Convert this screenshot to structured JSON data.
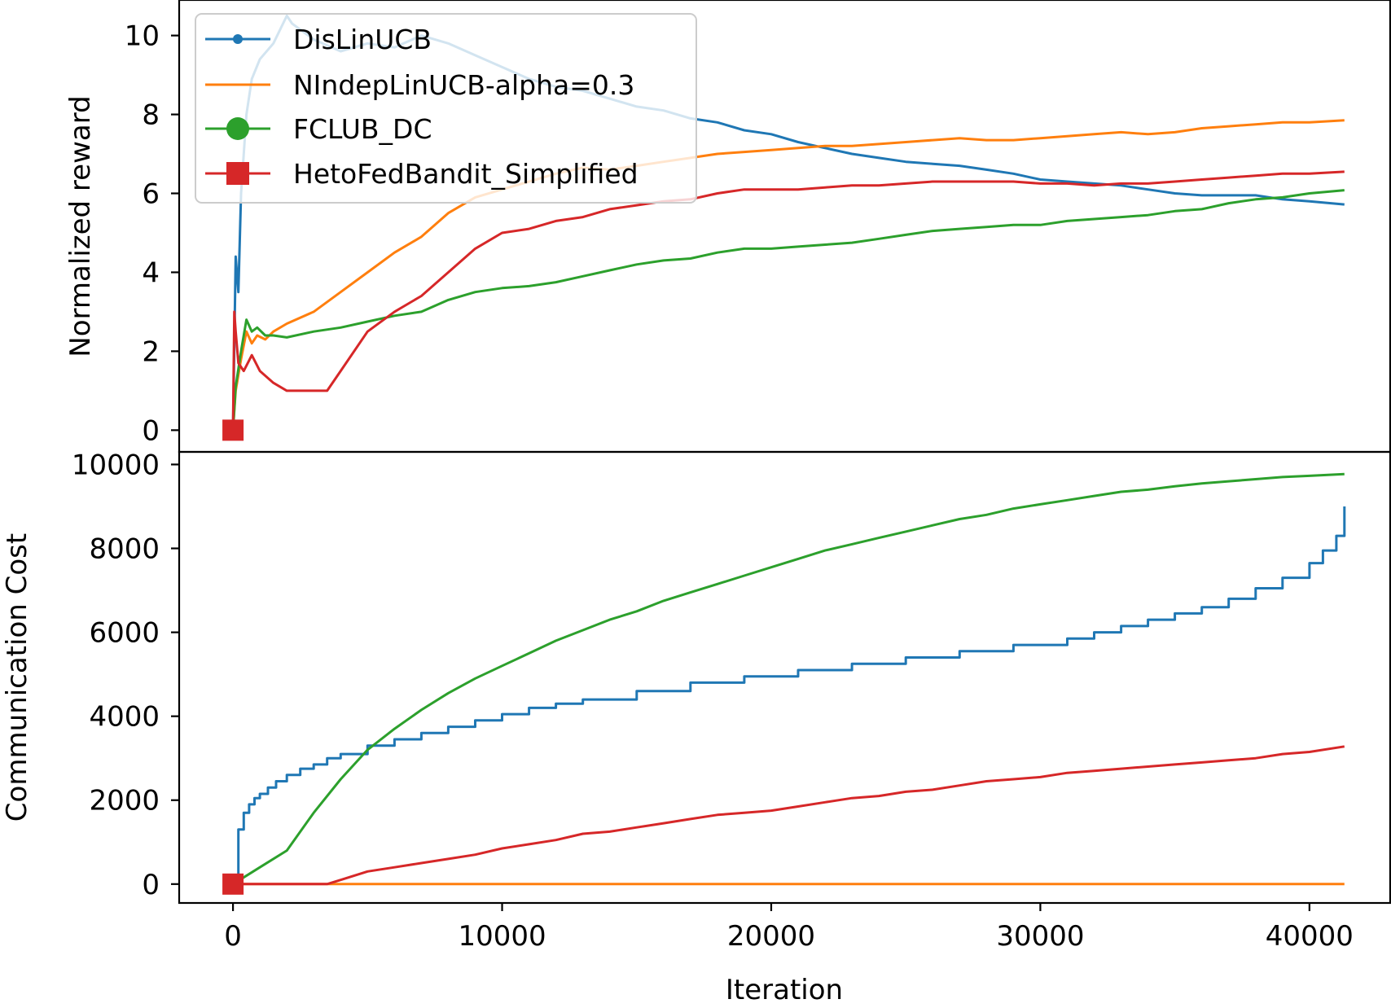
{
  "chart_data": [
    {
      "type": "line",
      "ylabel": "Normalized reward",
      "xlabel": "",
      "xlim": [
        -2000,
        43000
      ],
      "ylim": [
        -0.55,
        10.9
      ],
      "yticks": [
        0,
        2,
        4,
        6,
        8,
        10
      ],
      "xticks": [],
      "grid": false,
      "legend": {
        "position": "upper-left",
        "entries": [
          {
            "label": "DisLinUCB",
            "color": "#1f77b4",
            "marker": "dot"
          },
          {
            "label": "NIndepLinUCB-alpha=0.3",
            "color": "#ff7f0e",
            "marker": "none"
          },
          {
            "label": "FCLUB_DC",
            "color": "#2ca02c",
            "marker": "circle"
          },
          {
            "label": "HetoFedBandit_Simplified",
            "color": "#d62728",
            "marker": "square"
          }
        ]
      },
      "series": [
        {
          "name": "DisLinUCB",
          "color": "#1f77b4",
          "x": [
            0,
            100,
            200,
            300,
            500,
            700,
            1000,
            1500,
            2000,
            2200,
            3000,
            4000,
            5000,
            6000,
            7000,
            8000,
            9000,
            10000,
            11000,
            12000,
            13000,
            14000,
            15000,
            16000,
            17000,
            18000,
            19000,
            20000,
            21000,
            22000,
            23000,
            24000,
            25000,
            26000,
            27000,
            28000,
            29000,
            30000,
            31000,
            32000,
            33000,
            34000,
            35000,
            36000,
            37000,
            38000,
            39000,
            40000,
            41300
          ],
          "y": [
            0,
            4.4,
            3.5,
            6.0,
            8.0,
            8.9,
            9.4,
            9.8,
            10.5,
            10.3,
            9.9,
            9.6,
            9.8,
            9.7,
            10.0,
            9.8,
            9.5,
            9.2,
            8.9,
            8.7,
            8.6,
            8.4,
            8.2,
            8.1,
            7.9,
            7.8,
            7.6,
            7.5,
            7.3,
            7.15,
            7.0,
            6.9,
            6.8,
            6.75,
            6.7,
            6.6,
            6.5,
            6.35,
            6.3,
            6.25,
            6.2,
            6.1,
            6.0,
            5.95,
            5.95,
            5.95,
            5.85,
            5.8,
            5.72
          ]
        },
        {
          "name": "NIndepLinUCB-alpha=0.3",
          "color": "#ff7f0e",
          "x": [
            0,
            100,
            300,
            500,
            700,
            900,
            1200,
            1500,
            2000,
            3000,
            4000,
            5000,
            6000,
            7000,
            8000,
            9000,
            10000,
            11000,
            12000,
            13000,
            14000,
            15000,
            16000,
            17000,
            18000,
            19000,
            20000,
            21000,
            22000,
            23000,
            24000,
            25000,
            26000,
            27000,
            28000,
            29000,
            30000,
            31000,
            32000,
            33000,
            34000,
            35000,
            36000,
            37000,
            38000,
            39000,
            40000,
            41300
          ],
          "y": [
            0,
            1.0,
            1.8,
            2.5,
            2.2,
            2.4,
            2.3,
            2.5,
            2.7,
            3.0,
            3.5,
            4.0,
            4.5,
            4.9,
            5.5,
            5.9,
            6.1,
            6.3,
            6.5,
            6.65,
            6.6,
            6.7,
            6.8,
            6.9,
            7.0,
            7.05,
            7.1,
            7.15,
            7.2,
            7.2,
            7.25,
            7.3,
            7.35,
            7.4,
            7.35,
            7.35,
            7.4,
            7.45,
            7.5,
            7.55,
            7.5,
            7.55,
            7.65,
            7.7,
            7.75,
            7.8,
            7.8,
            7.85
          ]
        },
        {
          "name": "FCLUB_DC",
          "color": "#2ca02c",
          "x": [
            0,
            100,
            300,
            500,
            700,
            900,
            1200,
            1500,
            2000,
            3000,
            4000,
            5000,
            6000,
            7000,
            8000,
            9000,
            10000,
            11000,
            12000,
            13000,
            14000,
            15000,
            16000,
            17000,
            18000,
            19000,
            20000,
            21000,
            22000,
            23000,
            24000,
            25000,
            26000,
            27000,
            28000,
            29000,
            30000,
            31000,
            32000,
            33000,
            34000,
            35000,
            36000,
            37000,
            38000,
            39000,
            40000,
            41300
          ],
          "y": [
            0,
            1.1,
            2.0,
            2.8,
            2.5,
            2.6,
            2.4,
            2.4,
            2.35,
            2.5,
            2.6,
            2.75,
            2.9,
            3.0,
            3.3,
            3.5,
            3.6,
            3.65,
            3.75,
            3.9,
            4.05,
            4.2,
            4.3,
            4.35,
            4.5,
            4.6,
            4.6,
            4.65,
            4.7,
            4.75,
            4.85,
            4.95,
            5.05,
            5.1,
            5.15,
            5.2,
            5.2,
            5.3,
            5.35,
            5.4,
            5.45,
            5.55,
            5.6,
            5.75,
            5.85,
            5.9,
            6.0,
            6.08
          ]
        },
        {
          "name": "HetoFedBandit_Simplified",
          "color": "#d62728",
          "x": [
            0,
            50,
            100,
            200,
            400,
            700,
            1000,
            1500,
            2000,
            3000,
            3500,
            4000,
            5000,
            6000,
            7000,
            8000,
            9000,
            10000,
            11000,
            12000,
            13000,
            14000,
            15000,
            16000,
            17000,
            18000,
            19000,
            20000,
            21000,
            22000,
            23000,
            24000,
            25000,
            26000,
            27000,
            28000,
            29000,
            30000,
            31000,
            32000,
            33000,
            34000,
            35000,
            36000,
            37000,
            38000,
            39000,
            40000,
            41300
          ],
          "y": [
            0,
            3.0,
            2.5,
            1.7,
            1.5,
            1.9,
            1.5,
            1.2,
            1.0,
            1.0,
            1.0,
            1.5,
            2.5,
            3.0,
            3.4,
            4.0,
            4.6,
            5.0,
            5.1,
            5.3,
            5.4,
            5.6,
            5.7,
            5.8,
            5.85,
            6.0,
            6.1,
            6.1,
            6.1,
            6.15,
            6.2,
            6.2,
            6.25,
            6.3,
            6.3,
            6.3,
            6.3,
            6.25,
            6.25,
            6.2,
            6.25,
            6.25,
            6.3,
            6.35,
            6.4,
            6.45,
            6.5,
            6.5,
            6.55
          ]
        }
      ]
    },
    {
      "type": "line",
      "ylabel": "Communication Cost",
      "xlabel": "Iteration",
      "xlim": [
        -2000,
        43000
      ],
      "ylim": [
        -450,
        10300
      ],
      "yticks": [
        0,
        2000,
        4000,
        6000,
        8000,
        10000
      ],
      "xticks": [
        0,
        10000,
        20000,
        30000,
        40000
      ],
      "grid": false,
      "series": [
        {
          "name": "DisLinUCB",
          "color": "#1f77b4",
          "step": true,
          "x": [
            0,
            200,
            400,
            600,
            800,
            1000,
            1300,
            1600,
            2000,
            2500,
            3000,
            3500,
            4000,
            5000,
            6000,
            7000,
            8000,
            9000,
            10000,
            11000,
            12000,
            13000,
            15000,
            17000,
            19000,
            21000,
            23000,
            25000,
            27000,
            29000,
            31000,
            32000,
            33000,
            34000,
            35000,
            36000,
            37000,
            38000,
            39000,
            40000,
            40500,
            41000,
            41300
          ],
          "y": [
            0,
            1300,
            1700,
            1900,
            2050,
            2150,
            2300,
            2450,
            2600,
            2750,
            2850,
            3000,
            3100,
            3300,
            3450,
            3600,
            3750,
            3900,
            4050,
            4200,
            4300,
            4400,
            4600,
            4800,
            4950,
            5100,
            5250,
            5400,
            5550,
            5700,
            5850,
            6000,
            6150,
            6300,
            6450,
            6600,
            6800,
            7050,
            7300,
            7650,
            7950,
            8300,
            9000
          ]
        },
        {
          "name": "NIndepLinUCB-alpha=0.3",
          "color": "#ff7f0e",
          "x": [
            0,
            41300
          ],
          "y": [
            0,
            0
          ]
        },
        {
          "name": "FCLUB_DC",
          "color": "#2ca02c",
          "x": [
            0,
            1000,
            2000,
            3000,
            4000,
            5000,
            6000,
            7000,
            8000,
            9000,
            10000,
            11000,
            12000,
            13000,
            14000,
            15000,
            16000,
            17000,
            18000,
            19000,
            20000,
            21000,
            22000,
            23000,
            24000,
            25000,
            26000,
            27000,
            28000,
            29000,
            30000,
            31000,
            32000,
            33000,
            34000,
            35000,
            36000,
            37000,
            38000,
            39000,
            40000,
            41300
          ],
          "y": [
            0,
            400,
            800,
            1700,
            2500,
            3200,
            3700,
            4150,
            4550,
            4900,
            5200,
            5500,
            5800,
            6050,
            6300,
            6500,
            6750,
            6950,
            7150,
            7350,
            7550,
            7750,
            7950,
            8100,
            8250,
            8400,
            8550,
            8700,
            8800,
            8950,
            9050,
            9150,
            9250,
            9350,
            9400,
            9480,
            9550,
            9600,
            9650,
            9700,
            9730,
            9770
          ]
        },
        {
          "name": "HetoFedBandit_Simplified",
          "color": "#d62728",
          "x": [
            0,
            3500,
            4000,
            5000,
            6000,
            7000,
            8000,
            9000,
            10000,
            11000,
            12000,
            13000,
            14000,
            15000,
            16000,
            17000,
            18000,
            19000,
            20000,
            21000,
            22000,
            23000,
            24000,
            25000,
            26000,
            27000,
            28000,
            29000,
            30000,
            31000,
            32000,
            33000,
            34000,
            35000,
            36000,
            37000,
            38000,
            39000,
            40000,
            41300
          ],
          "y": [
            0,
            0,
            100,
            300,
            400,
            500,
            600,
            700,
            850,
            950,
            1050,
            1200,
            1250,
            1350,
            1450,
            1550,
            1650,
            1700,
            1750,
            1850,
            1950,
            2050,
            2100,
            2200,
            2250,
            2350,
            2450,
            2500,
            2550,
            2650,
            2700,
            2750,
            2800,
            2850,
            2900,
            2950,
            3000,
            3100,
            3150,
            3280
          ]
        }
      ]
    }
  ]
}
